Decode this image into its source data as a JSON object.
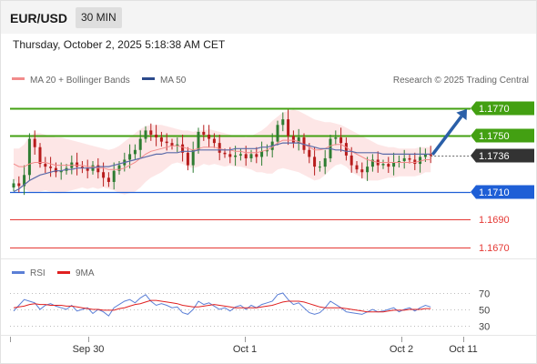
{
  "header": {
    "symbol": "EUR/USD",
    "timeframe": "30 MIN",
    "datetime": "Thursday, October 2, 2025 5:18:38 AM CET"
  },
  "colors": {
    "up_candle": "#2e7d32",
    "down_candle": "#b71c1c",
    "green_level": "#43a012",
    "blue_level": "#1f5fd6",
    "red_level": "#e53935",
    "current_price_bg": "#333333",
    "bollinger_fill": "#fde2e2",
    "ma20": "#f28b8b",
    "ma50": "#5b6aa8",
    "arrow": "#2a5fa8",
    "rsi_line": "#5b7fd6",
    "rsi_ma": "#e02020"
  },
  "chart_data": {
    "type": "candlestick",
    "legend": [
      {
        "label": "MA 20 + Bollinger Bands",
        "color": "#f28b8b"
      },
      {
        "label": "MA 50",
        "color": "#2c4a8c"
      }
    ],
    "attribution": "Research © 2025 Trading Central",
    "x_ticks": [
      "Sep 30",
      "Oct 1",
      "Oct 2",
      "Oct 11"
    ],
    "ylim": [
      1.1662,
      1.1785
    ],
    "price_path": [
      1.1716,
      1.1714,
      1.1722,
      1.1748,
      1.1742,
      1.173,
      1.1728,
      1.1727,
      1.1724,
      1.1725,
      1.1727,
      1.1731,
      1.1728,
      1.1727,
      1.1725,
      1.1729,
      1.1724,
      1.172,
      1.1717,
      1.1725,
      1.1729,
      1.1733,
      1.1737,
      1.174,
      1.1748,
      1.1754,
      1.1751,
      1.1749,
      1.1746,
      1.1745,
      1.1743,
      1.1744,
      1.1738,
      1.1729,
      1.174,
      1.1753,
      1.1751,
      1.1748,
      1.1745,
      1.1738,
      1.1737,
      1.1735,
      1.1736,
      1.1737,
      1.1734,
      1.1737,
      1.1735,
      1.1739,
      1.174,
      1.1746,
      1.1758,
      1.1762,
      1.175,
      1.1745,
      1.1749,
      1.174,
      1.1735,
      1.1728,
      1.1728,
      1.1734,
      1.1748,
      1.1749,
      1.1745,
      1.1736,
      1.1729,
      1.1726,
      1.1724,
      1.1728,
      1.1733,
      1.1729,
      1.173,
      1.1728,
      1.1731,
      1.1732,
      1.1734,
      1.1733,
      1.173,
      1.1735,
      1.1737,
      1.1736
    ],
    "ma20": [
      1.173,
      1.1728,
      1.1728,
      1.173,
      1.1731,
      1.1731,
      1.1731,
      1.173,
      1.1729,
      1.1729,
      1.1729,
      1.1729,
      1.1729,
      1.1729,
      1.1728,
      1.1728,
      1.1727,
      1.1727,
      1.1726,
      1.1726,
      1.1726,
      1.1727,
      1.1729,
      1.1731,
      1.1734,
      1.1737,
      1.1739,
      1.174,
      1.1741,
      1.1742,
      1.1743,
      1.1743,
      1.1742,
      1.1741,
      1.174,
      1.1741,
      1.1742,
      1.1742,
      1.1742,
      1.1741,
      1.174,
      1.174,
      1.1739,
      1.1739,
      1.1738,
      1.1738,
      1.1738,
      1.1739,
      1.174,
      1.1742,
      1.1745,
      1.1747,
      1.1747,
      1.1747,
      1.1746,
      1.1744,
      1.1742,
      1.174,
      1.174,
      1.1741,
      1.1743,
      1.1744,
      1.1744,
      1.1742,
      1.1739,
      1.1737,
      1.1735,
      1.1733,
      1.1732,
      1.1731,
      1.1731,
      1.1731,
      1.1731,
      1.1731,
      1.1731,
      1.1731,
      1.1731,
      1.1732,
      1.1733,
      1.1733
    ],
    "ma50": [
      1.171,
      1.1712,
      1.1715,
      1.1718,
      1.172,
      1.1722,
      1.1723,
      1.1724,
      1.1725,
      1.1725,
      1.1726,
      1.1726,
      1.1727,
      1.1727,
      1.1727,
      1.1727,
      1.1728,
      1.1728,
      1.1728,
      1.1729,
      1.173,
      1.1731,
      1.1732,
      1.1733,
      1.1734,
      1.1735,
      1.1736,
      1.1737,
      1.1737,
      1.1738,
      1.1738,
      1.1738,
      1.1739,
      1.1739,
      1.1739,
      1.174,
      1.174,
      1.174,
      1.174,
      1.174,
      1.174,
      1.174,
      1.1741,
      1.1741,
      1.1741,
      1.1741,
      1.1741,
      1.1742,
      1.1742,
      1.1743,
      1.1744,
      1.1745,
      1.1745,
      1.1745,
      1.1745,
      1.1744,
      1.1743,
      1.1742,
      1.1741,
      1.1741,
      1.1741,
      1.174,
      1.174,
      1.1739,
      1.1739,
      1.1738,
      1.1738,
      1.1738,
      1.1738,
      1.1738,
      1.1737,
      1.1737,
      1.1737,
      1.1737,
      1.1737,
      1.1737,
      1.1737,
      1.1737,
      1.1737,
      1.1737
    ],
    "bollinger_upper": [
      1.1741,
      1.1741,
      1.1744,
      1.175,
      1.1752,
      1.1752,
      1.1751,
      1.175,
      1.1749,
      1.1749,
      1.1748,
      1.1747,
      1.1746,
      1.1745,
      1.1744,
      1.1743,
      1.1742,
      1.1741,
      1.174,
      1.1741,
      1.1743,
      1.1746,
      1.1749,
      1.1752,
      1.1755,
      1.1757,
      1.1758,
      1.1758,
      1.1758,
      1.1757,
      1.1756,
      1.1755,
      1.1754,
      1.1754,
      1.1753,
      1.1754,
      1.1754,
      1.1755,
      1.1754,
      1.1753,
      1.1752,
      1.1751,
      1.175,
      1.175,
      1.1749,
      1.175,
      1.1752,
      1.1754,
      1.1757,
      1.1761,
      1.1764,
      1.1767,
      1.1768,
      1.1769,
      1.1768,
      1.1766,
      1.1764,
      1.1762,
      1.1761,
      1.176,
      1.176,
      1.1759,
      1.1758,
      1.1756,
      1.1754,
      1.1752,
      1.175,
      1.1748,
      1.1746,
      1.1744,
      1.1743,
      1.1742,
      1.1742,
      1.1741,
      1.1741,
      1.1741,
      1.1741,
      1.1742,
      1.1742,
      1.1742
    ],
    "bollinger_lower": [
      1.1719,
      1.1715,
      1.1712,
      1.171,
      1.171,
      1.171,
      1.1711,
      1.171,
      1.1709,
      1.1709,
      1.171,
      1.1711,
      1.1712,
      1.1713,
      1.1712,
      1.1713,
      1.1712,
      1.1713,
      1.1712,
      1.1711,
      1.1709,
      1.1708,
      1.1709,
      1.171,
      1.1713,
      1.1717,
      1.172,
      1.1722,
      1.1724,
      1.1727,
      1.173,
      1.1731,
      1.173,
      1.1728,
      1.1727,
      1.1728,
      1.173,
      1.1729,
      1.173,
      1.1729,
      1.1728,
      1.1729,
      1.1728,
      1.1728,
      1.1727,
      1.1726,
      1.1724,
      1.1724,
      1.1723,
      1.1723,
      1.1726,
      1.1727,
      1.1726,
      1.1725,
      1.1724,
      1.1722,
      1.172,
      1.1718,
      1.1719,
      1.1722,
      1.1726,
      1.1729,
      1.173,
      1.1728,
      1.1724,
      1.1722,
      1.172,
      1.1718,
      1.1718,
      1.1718,
      1.1719,
      1.172,
      1.172,
      1.1721,
      1.1721,
      1.1721,
      1.1721,
      1.1722,
      1.1724,
      1.1724
    ],
    "levels": [
      {
        "value": 1.177,
        "label": "1.1770",
        "kind": "resistance",
        "style": "green-line"
      },
      {
        "value": 1.175,
        "label": "1.1750",
        "kind": "resistance",
        "style": "green-line"
      },
      {
        "value": 1.1736,
        "label": "1.1736",
        "kind": "current",
        "style": "dotted"
      },
      {
        "value": 1.171,
        "label": "1.1710",
        "kind": "pivot",
        "style": "blue-line"
      },
      {
        "value": 1.169,
        "label": "1.1690",
        "kind": "support",
        "style": "red-line"
      },
      {
        "value": 1.167,
        "label": "1.1670",
        "kind": "support",
        "style": "red-line"
      }
    ],
    "forecast_arrow": {
      "from": 1.1736,
      "to": 1.177
    },
    "rsi": {
      "legend": [
        {
          "label": "RSI",
          "color": "#5b7fd6"
        },
        {
          "label": "9MA",
          "color": "#e02020"
        }
      ],
      "ylim": [
        20,
        80
      ],
      "ticks": [
        70,
        50,
        30
      ],
      "values": [
        48,
        55,
        62,
        60,
        58,
        50,
        55,
        57,
        54,
        52,
        50,
        55,
        48,
        50,
        52,
        45,
        50,
        47,
        42,
        52,
        56,
        60,
        62,
        58,
        64,
        68,
        60,
        55,
        57,
        55,
        52,
        53,
        46,
        44,
        50,
        60,
        56,
        58,
        54,
        50,
        52,
        48,
        53,
        55,
        50,
        55,
        52,
        56,
        58,
        60,
        68,
        70,
        62,
        56,
        58,
        52,
        46,
        44,
        46,
        52,
        60,
        56,
        52,
        47,
        46,
        45,
        44,
        47,
        50,
        47,
        48,
        50,
        52,
        47,
        50,
        52,
        48,
        52,
        55,
        53
      ],
      "ma": [
        52,
        53,
        54,
        56,
        57,
        56,
        56,
        55,
        55,
        55,
        54,
        54,
        53,
        52,
        51,
        50,
        50,
        49,
        49,
        49,
        51,
        52,
        54,
        56,
        57,
        59,
        61,
        61,
        60,
        59,
        58,
        57,
        55,
        54,
        53,
        53,
        54,
        55,
        56,
        55,
        54,
        53,
        52,
        52,
        52,
        52,
        52,
        53,
        54,
        55,
        57,
        59,
        60,
        60,
        60,
        59,
        57,
        55,
        53,
        52,
        52,
        52,
        52,
        51,
        50,
        49,
        48,
        47,
        47,
        47,
        47,
        48,
        49,
        49,
        49,
        50,
        50,
        50,
        51,
        51
      ]
    }
  }
}
